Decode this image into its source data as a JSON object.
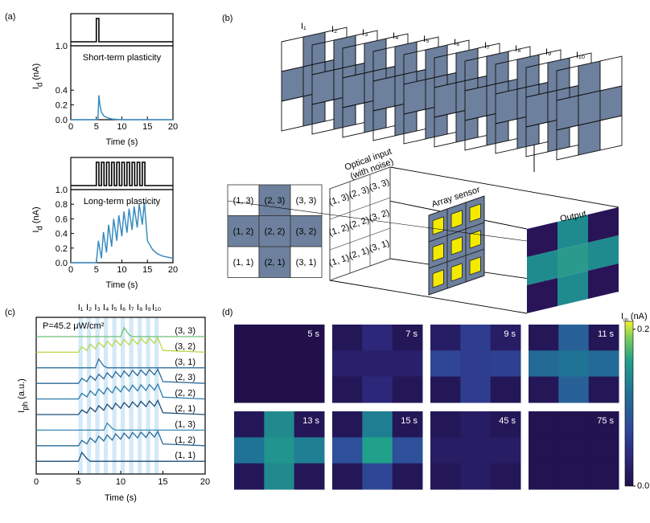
{
  "panels": [
    "(a)",
    "(b)",
    "(c)",
    "(d)"
  ],
  "diagram": {
    "frame_labels": [
      "I₁",
      "I₂",
      "I₃",
      "I₄",
      "I₅",
      "I₆",
      "I₇",
      "I₈",
      "I₉",
      "I₁₀"
    ],
    "grid": [
      [
        {
          "label": "(1, 3)",
          "on": false
        },
        {
          "label": "(2, 3)",
          "on": true
        },
        {
          "label": "(3, 3)",
          "on": false
        }
      ],
      [
        {
          "label": "(1, 2)",
          "on": true
        },
        {
          "label": "(2, 2)",
          "on": true
        },
        {
          "label": "(3, 2)",
          "on": true
        }
      ],
      [
        {
          "label": "(1, 1)",
          "on": false
        },
        {
          "label": "(2, 1)",
          "on": true
        },
        {
          "label": "(3, 1)",
          "on": false
        }
      ]
    ],
    "input_label": [
      "Optical input",
      "(with noise)"
    ],
    "sensor_label": "Array sensor",
    "output_label": "Output"
  },
  "chart_data": [
    {
      "type": "line",
      "subtitle": "Short-term plasticity",
      "x_label": "Time (s)",
      "y_label": {
        "main": "I",
        "sub": "d",
        "rest": " (nA)"
      },
      "color": "#3a8cc0",
      "x": [
        0,
        5.3,
        5.5,
        5.7,
        6,
        6.5,
        7,
        8,
        10,
        20
      ],
      "values": [
        0,
        0,
        0.33,
        0.2,
        0.1,
        0.05,
        0.03,
        0.01,
        0,
        0
      ],
      "xlim": [
        0,
        20
      ],
      "xticks": [
        0,
        5,
        10,
        15,
        20
      ],
      "ylim": [
        0,
        1
      ],
      "yticks": [
        {
          "value": 0,
          "label": "0.0"
        },
        {
          "value": 0.2,
          "label": "0.2"
        },
        {
          "value": 0.4,
          "label": "0.4"
        },
        {
          "value": 1,
          "label": "1.0"
        }
      ]
    },
    {
      "type": "line",
      "subtitle": "Long-term plasticity",
      "x_label": "Time (s)",
      "y_label": {
        "main": "I",
        "sub": "d",
        "rest": " (nA)"
      },
      "color": "#3a8cc0",
      "x": [
        0,
        5,
        5.4,
        6,
        6.4,
        7,
        7.4,
        8,
        8.4,
        9,
        9.4,
        10,
        10.4,
        11,
        11.4,
        12,
        12.4,
        13,
        13.4,
        14,
        14.4,
        15,
        16,
        17,
        18,
        20
      ],
      "values": [
        0,
        0,
        0.3,
        0.06,
        0.42,
        0.14,
        0.52,
        0.22,
        0.6,
        0.3,
        0.65,
        0.36,
        0.7,
        0.41,
        0.74,
        0.45,
        0.77,
        0.48,
        0.8,
        0.52,
        0.83,
        0.3,
        0.18,
        0.12,
        0.09,
        0.06
      ],
      "xlim": [
        0,
        20
      ],
      "xticks": [
        0,
        5,
        10,
        15,
        20
      ],
      "ylim": [
        0,
        1
      ],
      "yticks": [
        {
          "value": 0,
          "label": "0.0"
        },
        {
          "value": 0.2,
          "label": "0.2"
        },
        {
          "value": 0.4,
          "label": "0.4"
        },
        {
          "value": 0.6,
          "label": "0.6"
        },
        {
          "value": 0.8,
          "label": "0.8"
        },
        {
          "value": 1,
          "label": "1.0"
        }
      ]
    },
    {
      "type": "stacked-line",
      "x_label": "Time (s)",
      "y_label": {
        "main": "I",
        "sub": "ph",
        "rest": " (a.u.)"
      },
      "annotation": "P=45.2 μW/cm²",
      "pulse_labels": [
        "I₁",
        "I₂",
        "I₃",
        "I₄",
        "I₅",
        "I₆",
        "I₇",
        "I₈",
        "I₉",
        "I₁₀"
      ],
      "bands": [
        [
          5,
          5.5
        ],
        [
          6,
          6.5
        ],
        [
          7,
          7.5
        ],
        [
          8,
          8.5
        ],
        [
          9,
          9.5
        ],
        [
          10,
          10.5
        ],
        [
          11,
          11.5
        ],
        [
          12,
          12.5
        ],
        [
          13,
          13.5
        ],
        [
          14,
          14.5
        ]
      ],
      "xlim": [
        0,
        20
      ],
      "xticks": [
        0,
        5,
        10,
        15,
        20
      ],
      "x": [
        0,
        5,
        5.4,
        6,
        6.4,
        7,
        7.4,
        8,
        8.4,
        9,
        9.4,
        10,
        10.4,
        11,
        11.4,
        12,
        12.4,
        13,
        13.4,
        14,
        14.4,
        15,
        20
      ],
      "series": [
        {
          "name": "(3, 3)",
          "color": "#6cbf73",
          "values": [
            0,
            0,
            0,
            0,
            0,
            0,
            0,
            0,
            0,
            0,
            0,
            0,
            0.5,
            0.1,
            0,
            0,
            0,
            0,
            0,
            0,
            0,
            0,
            0
          ]
        },
        {
          "name": "(3, 2)",
          "color": "#b6d84a",
          "values": [
            0,
            0,
            0.3,
            0.1,
            0.45,
            0.2,
            0.55,
            0.28,
            0.62,
            0.33,
            0.68,
            0.38,
            0.72,
            0.42,
            0.76,
            0.45,
            0.78,
            0.48,
            0.8,
            0.5,
            0.82,
            0.1,
            0
          ]
        },
        {
          "name": "(3, 1)",
          "color": "#2d6f9d",
          "values": [
            0,
            0,
            0,
            0,
            0,
            0,
            0.5,
            0.1,
            0,
            0,
            0,
            0,
            0,
            0,
            0,
            0,
            0,
            0,
            0,
            0,
            0,
            0,
            0
          ]
        },
        {
          "name": "(2, 3)",
          "color": "#2a6a98",
          "values": [
            0,
            0,
            0.28,
            0.1,
            0.42,
            0.18,
            0.52,
            0.26,
            0.6,
            0.32,
            0.66,
            0.36,
            0.7,
            0.4,
            0.74,
            0.44,
            0.76,
            0.46,
            0.78,
            0.48,
            0.8,
            0.1,
            0
          ]
        },
        {
          "name": "(2, 2)",
          "color": "#2b7bab",
          "values": [
            0,
            0,
            0.32,
            0.12,
            0.46,
            0.2,
            0.56,
            0.28,
            0.63,
            0.34,
            0.7,
            0.4,
            0.74,
            0.44,
            0.78,
            0.46,
            0.8,
            0.48,
            0.82,
            0.5,
            0.84,
            0.1,
            0
          ]
        },
        {
          "name": "(2, 1)",
          "color": "#1d4d78",
          "values": [
            0,
            0,
            0.26,
            0.08,
            0.4,
            0.16,
            0.5,
            0.24,
            0.58,
            0.3,
            0.64,
            0.35,
            0.68,
            0.4,
            0.72,
            0.43,
            0.75,
            0.45,
            0.77,
            0.47,
            0.8,
            0.1,
            0
          ]
        },
        {
          "name": "(1, 3)",
          "color": "#3a87b2",
          "values": [
            0,
            0,
            0,
            0,
            0,
            0,
            0,
            0,
            0.4,
            0.1,
            0,
            0,
            0,
            0,
            0,
            0,
            0,
            0,
            0,
            0,
            0,
            0,
            0
          ]
        },
        {
          "name": "(1, 2)",
          "color": "#2a6a98",
          "values": [
            0,
            0,
            0.3,
            0.1,
            0.44,
            0.19,
            0.54,
            0.27,
            0.61,
            0.32,
            0.67,
            0.37,
            0.71,
            0.41,
            0.75,
            0.44,
            0.77,
            0.47,
            0.79,
            0.49,
            0.81,
            0.1,
            0
          ]
        },
        {
          "name": "(1, 1)",
          "color": "#1d4d78",
          "values": [
            0,
            0,
            0.5,
            0.15,
            0,
            0,
            0,
            0,
            0,
            0,
            0,
            0,
            0,
            0,
            0,
            0,
            0,
            0,
            0,
            0,
            0,
            0,
            0
          ]
        }
      ]
    },
    {
      "type": "heatmap",
      "colorbar": {
        "label": {
          "main": "I",
          "sub": "ph",
          "rest": " (nA)"
        },
        "lim": [
          0,
          0.21
        ],
        "ticks": [
          {
            "value": 0,
            "label": "0.0"
          },
          {
            "value": 0.2,
            "label": "0.2"
          }
        ]
      },
      "colormap": [
        {
          "value": 0,
          "color": "#21104a"
        },
        {
          "value": 0.04,
          "color": "#2d2a80"
        },
        {
          "value": 0.08,
          "color": "#2e4f9a"
        },
        {
          "value": 0.12,
          "color": "#1f7394"
        },
        {
          "value": 0.16,
          "color": "#21a08a"
        },
        {
          "value": 0.19,
          "color": "#7ccf5a"
        },
        {
          "value": 0.21,
          "color": "#f7f22a"
        }
      ],
      "panels": [
        {
          "title": "5 s",
          "values": [
            [
              0,
              0,
              0
            ],
            [
              0,
              0,
              0
            ],
            [
              0,
              0,
              0
            ]
          ]
        },
        {
          "title": "7 s",
          "values": [
            [
              0.01,
              0.035,
              0.01
            ],
            [
              0.025,
              0.025,
              0.025
            ],
            [
              0.01,
              0.035,
              0.01
            ]
          ]
        },
        {
          "title": "9 s",
          "values": [
            [
              0.02,
              0.06,
              0.02
            ],
            [
              0.07,
              0.06,
              0.065
            ],
            [
              0.01,
              0.06,
              0.01
            ]
          ]
        },
        {
          "title": "11 s",
          "values": [
            [
              0.01,
              0.1,
              0.01
            ],
            [
              0.11,
              0.12,
              0.11
            ],
            [
              0.01,
              0.1,
              0.01
            ]
          ]
        },
        {
          "title": "13 s",
          "values": [
            [
              0.01,
              0.14,
              0.01
            ],
            [
              0.12,
              0.15,
              0.13
            ],
            [
              0.01,
              0.14,
              0.01
            ]
          ]
        },
        {
          "title": "15 s",
          "values": [
            [
              0.01,
              0.13,
              0.01
            ],
            [
              0.08,
              0.16,
              0.08
            ],
            [
              0.01,
              0.07,
              0.01
            ]
          ]
        },
        {
          "title": "45 s",
          "values": [
            [
              0.01,
              0.02,
              0.01
            ],
            [
              0.02,
              0.02,
              0.02
            ],
            [
              0.01,
              0.02,
              0.01
            ]
          ]
        },
        {
          "title": "75 s",
          "values": [
            [
              0.005,
              0.005,
              0.005
            ],
            [
              0.005,
              0.005,
              0.005
            ],
            [
              0.005,
              0.005,
              0.005
            ]
          ]
        }
      ]
    }
  ]
}
